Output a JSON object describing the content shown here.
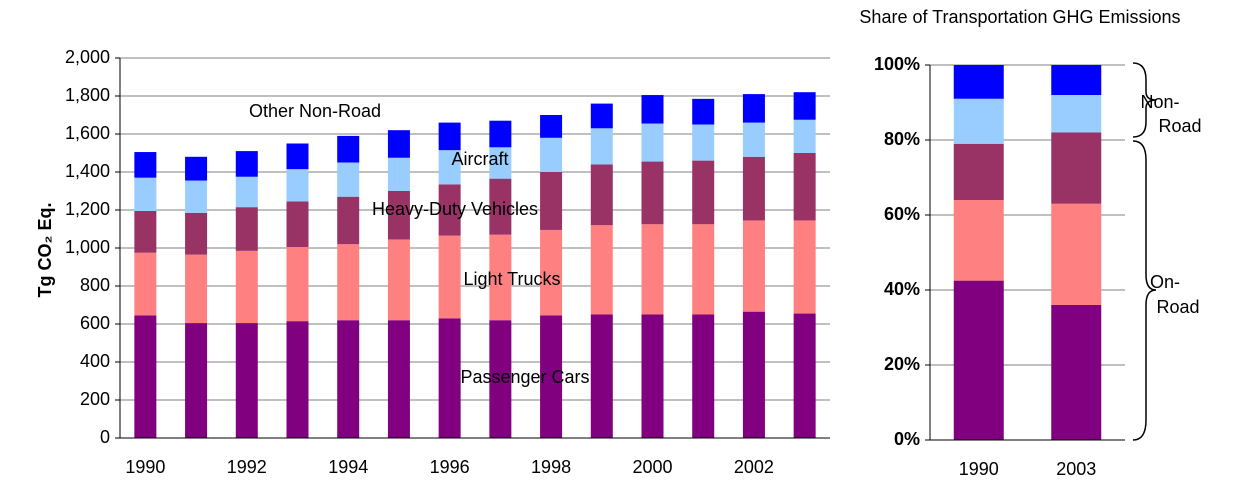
{
  "chart_data": [
    {
      "type": "stacked_bar",
      "ylabel": "Tg CO₂ Eq.",
      "categories": [
        "1990",
        null,
        "1992",
        null,
        "1994",
        null,
        "1996",
        null,
        "1998",
        null,
        "2000",
        null,
        "2002",
        null
      ],
      "series": [
        {
          "name": "Passenger Cars",
          "color": "#800080",
          "values": [
            645,
            605,
            605,
            615,
            620,
            620,
            630,
            620,
            645,
            650,
            650,
            650,
            665,
            655
          ]
        },
        {
          "name": "Light Trucks",
          "color": "#ff8080",
          "values": [
            330,
            360,
            380,
            390,
            400,
            425,
            435,
            450,
            450,
            470,
            475,
            475,
            480,
            490
          ]
        },
        {
          "name": "Heavy-Duty Vehicles",
          "color": "#993366",
          "values": [
            220,
            220,
            230,
            240,
            250,
            255,
            270,
            295,
            305,
            320,
            330,
            335,
            335,
            355
          ]
        },
        {
          "name": "Aircraft",
          "color": "#99ccff",
          "values": [
            175,
            170,
            160,
            170,
            180,
            175,
            180,
            165,
            180,
            190,
            200,
            190,
            180,
            175
          ]
        },
        {
          "name": "Other Non-Road",
          "color": "#0000ff",
          "values": [
            135,
            125,
            135,
            135,
            140,
            145,
            145,
            140,
            120,
            130,
            150,
            135,
            150,
            145
          ]
        }
      ],
      "ylim": [
        0,
        2000
      ],
      "yticks": [
        0,
        200,
        400,
        600,
        800,
        {
          "value": 1000,
          "label": "1,000"
        },
        {
          "value": 1200,
          "label": "1,200"
        },
        {
          "value": 1400,
          "label": "1,400"
        },
        {
          "value": 1600,
          "label": "1,600"
        },
        {
          "value": 1800,
          "label": "1,800"
        },
        {
          "value": 2000,
          "label": "2,000"
        }
      ],
      "grid": true
    },
    {
      "type": "stacked_bar",
      "title": "Share of Transportation GHG Emissions",
      "categories": [
        "1990",
        "2003"
      ],
      "series": [
        {
          "color": "#800080",
          "values": [
            42.5,
            36
          ]
        },
        {
          "color": "#ff8080",
          "values": [
            21.5,
            27
          ]
        },
        {
          "color": "#993366",
          "values": [
            15,
            19
          ]
        },
        {
          "color": "#99ccff",
          "values": [
            12,
            10
          ]
        },
        {
          "color": "#0000ff",
          "values": [
            9,
            8
          ]
        }
      ],
      "ylim": [
        0,
        100
      ],
      "yticks": [
        {
          "value": 0,
          "label": "0%"
        },
        {
          "value": 20,
          "label": "20%"
        },
        {
          "value": 40,
          "label": "40%"
        },
        {
          "value": 60,
          "label": "60%"
        },
        {
          "value": 80,
          "label": "80%"
        },
        {
          "value": 100,
          "label": "100%"
        }
      ],
      "grid": true,
      "annotations": [
        {
          "text": [
            "Non-",
            "Road"
          ]
        },
        {
          "text": [
            "On-",
            "Road"
          ]
        }
      ]
    }
  ]
}
